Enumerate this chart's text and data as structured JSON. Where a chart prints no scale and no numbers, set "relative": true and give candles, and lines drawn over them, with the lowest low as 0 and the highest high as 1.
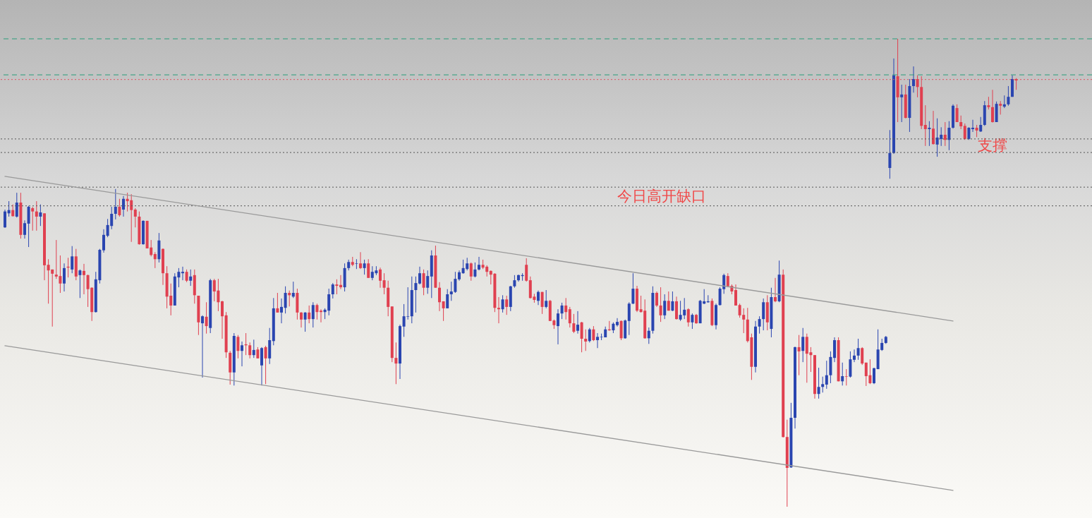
{
  "chart_data": {
    "type": "candlestick",
    "relative": true,
    "categories": [
      null,
      null,
      null,
      null,
      null,
      null,
      null,
      null,
      null,
      null,
      null,
      null,
      null,
      null,
      null,
      null,
      null,
      null,
      null,
      null,
      null,
      null,
      null,
      null,
      null,
      null,
      null,
      null,
      null,
      null,
      null,
      null,
      null,
      null,
      null,
      null,
      null,
      null,
      null,
      null,
      null,
      null,
      null,
      null,
      null,
      null,
      null,
      null,
      null,
      null,
      null,
      null,
      null,
      null,
      null,
      null,
      null,
      null,
      null,
      null,
      null,
      null,
      null,
      null,
      null,
      null,
      null,
      null,
      null,
      null,
      null,
      null,
      null,
      null,
      null,
      null,
      null,
      null,
      null,
      null,
      null,
      null,
      null,
      null,
      null,
      null,
      null,
      null,
      null,
      null,
      null,
      null,
      null,
      null,
      null,
      null,
      null,
      null,
      null,
      null,
      null,
      null,
      null,
      null,
      null,
      null,
      null,
      null,
      null,
      null,
      null,
      null,
      null,
      null,
      null,
      null,
      null,
      null,
      null,
      null,
      null,
      null,
      null,
      null,
      null,
      null,
      null,
      null,
      null,
      null,
      null,
      null,
      null,
      null,
      null,
      null,
      null,
      null,
      null,
      null,
      null,
      null,
      null,
      null,
      null,
      null,
      null,
      null,
      null,
      null,
      null,
      null,
      null,
      null,
      null,
      null,
      null,
      null,
      null,
      null,
      null,
      null,
      null,
      null,
      null,
      null,
      null,
      null,
      null,
      null,
      null,
      null,
      null,
      null,
      null,
      null,
      null,
      null,
      null,
      null,
      null,
      null,
      null,
      null,
      null,
      null,
      null,
      null,
      null,
      null,
      null,
      null,
      null,
      null,
      null,
      null,
      null,
      null,
      null,
      null,
      null,
      null,
      null,
      null,
      null,
      null,
      null,
      null,
      null,
      null,
      null,
      null,
      null,
      null,
      null,
      null,
      null,
      null,
      null,
      null,
      null,
      null,
      null,
      null,
      null,
      null,
      null,
      null,
      null,
      null,
      null,
      null,
      null,
      null,
      null,
      null,
      null,
      null,
      null,
      null,
      null,
      null,
      null,
      null,
      null,
      null,
      null,
      null,
      null,
      null,
      null,
      null,
      null,
      null,
      null,
      null,
      null
    ],
    "ohlc": [
      [
        0.597,
        0.635,
        0.596,
        0.631
      ],
      [
        0.627,
        0.653,
        0.62,
        0.634
      ],
      [
        0.634,
        0.646,
        0.62,
        0.621
      ],
      [
        0.62,
        0.671,
        0.618,
        0.65
      ],
      [
        0.65,
        0.671,
        0.573,
        0.581
      ],
      [
        0.581,
        0.612,
        0.573,
        0.606
      ],
      [
        0.605,
        0.643,
        0.555,
        0.641
      ],
      [
        0.638,
        0.641,
        0.59,
        0.631
      ],
      [
        0.631,
        0.653,
        0.59,
        0.62
      ],
      [
        0.62,
        0.646,
        0.6,
        0.629
      ],
      [
        0.627,
        0.627,
        0.484,
        0.516
      ],
      [
        0.517,
        0.529,
        0.434,
        0.505
      ],
      [
        0.507,
        0.507,
        0.385,
        0.498
      ],
      [
        0.496,
        0.57,
        0.487,
        0.492
      ],
      [
        0.493,
        0.537,
        0.457,
        0.477
      ],
      [
        0.477,
        0.52,
        0.46,
        0.51
      ],
      [
        0.513,
        0.532,
        0.49,
        0.511
      ],
      [
        0.507,
        0.557,
        0.499,
        0.535
      ],
      [
        0.535,
        0.551,
        0.484,
        0.492
      ],
      [
        0.495,
        0.507,
        0.446,
        0.505
      ],
      [
        0.504,
        0.519,
        0.454,
        0.495
      ],
      [
        0.495,
        0.496,
        0.427,
        0.465
      ],
      [
        0.468,
        0.469,
        0.397,
        0.416
      ],
      [
        0.416,
        0.502,
        0.415,
        0.486
      ],
      [
        0.484,
        0.551,
        0.477,
        0.549
      ],
      [
        0.548,
        0.593,
        0.543,
        0.581
      ],
      [
        0.579,
        0.615,
        0.576,
        0.602
      ],
      [
        0.6,
        0.641,
        0.593,
        0.626
      ],
      [
        0.626,
        0.679,
        0.614,
        0.641
      ],
      [
        0.641,
        0.658,
        0.62,
        0.623
      ],
      [
        0.635,
        0.664,
        0.62,
        0.658
      ],
      [
        0.658,
        0.671,
        0.631,
        0.653
      ],
      [
        0.655,
        0.668,
        0.566,
        0.634
      ],
      [
        0.635,
        0.638,
        0.597,
        0.62
      ],
      [
        0.62,
        0.631,
        0.56,
        0.561
      ],
      [
        0.561,
        0.612,
        0.56,
        0.611
      ],
      [
        0.611,
        0.611,
        0.552,
        0.552
      ],
      [
        0.554,
        0.57,
        0.535,
        0.538
      ],
      [
        0.54,
        0.544,
        0.51,
        0.529
      ],
      [
        0.529,
        0.585,
        0.522,
        0.569
      ],
      [
        0.551,
        0.552,
        0.474,
        0.499
      ],
      [
        0.499,
        0.514,
        0.424,
        0.449
      ],
      [
        0.451,
        0.477,
        0.409,
        0.43
      ],
      [
        0.43,
        0.499,
        0.43,
        0.492
      ],
      [
        0.49,
        0.51,
        0.469,
        0.502
      ],
      [
        0.499,
        0.513,
        0.484,
        0.502
      ],
      [
        0.502,
        0.507,
        0.48,
        0.483
      ],
      [
        0.483,
        0.507,
        0.472,
        0.492
      ],
      [
        0.495,
        0.507,
        0.434,
        0.452
      ],
      [
        0.451,
        0.451,
        0.367,
        0.394
      ],
      [
        0.392,
        0.409,
        0.276,
        0.407
      ],
      [
        0.406,
        0.437,
        0.37,
        0.386
      ],
      [
        0.382,
        0.487,
        0.371,
        0.484
      ],
      [
        0.484,
        0.487,
        0.439,
        0.46
      ],
      [
        0.462,
        0.487,
        0.418,
        0.437
      ],
      [
        0.439,
        0.44,
        0.359,
        0.407
      ],
      [
        0.409,
        0.416,
        0.318,
        0.33
      ],
      [
        0.329,
        0.333,
        0.261,
        0.287
      ],
      [
        0.287,
        0.371,
        0.259,
        0.365
      ],
      [
        0.363,
        0.367,
        0.317,
        0.333
      ],
      [
        0.333,
        0.353,
        0.3,
        0.345
      ],
      [
        0.347,
        0.371,
        0.324,
        0.345
      ],
      [
        0.345,
        0.351,
        0.317,
        0.324
      ],
      [
        0.324,
        0.357,
        0.318,
        0.335
      ],
      [
        0.336,
        0.341,
        0.317,
        0.317
      ],
      [
        0.302,
        0.341,
        0.259,
        0.339
      ],
      [
        0.341,
        0.344,
        0.262,
        0.317
      ],
      [
        0.317,
        0.382,
        0.305,
        0.356
      ],
      [
        0.354,
        0.446,
        0.345,
        0.424
      ],
      [
        0.424,
        0.457,
        0.415,
        0.415
      ],
      [
        0.415,
        0.445,
        0.392,
        0.427
      ],
      [
        0.425,
        0.471,
        0.413,
        0.457
      ],
      [
        0.457,
        0.462,
        0.428,
        0.452
      ],
      [
        0.449,
        0.481,
        0.446,
        0.457
      ],
      [
        0.457,
        0.466,
        0.4,
        0.415
      ],
      [
        0.415,
        0.416,
        0.383,
        0.4
      ],
      [
        0.4,
        0.416,
        0.374,
        0.415
      ],
      [
        0.415,
        0.43,
        0.392,
        0.401
      ],
      [
        0.401,
        0.437,
        0.383,
        0.431
      ],
      [
        0.431,
        0.434,
        0.4,
        0.416
      ],
      [
        0.419,
        0.422,
        0.394,
        0.416
      ],
      [
        0.416,
        0.424,
        0.401,
        0.421
      ],
      [
        0.419,
        0.466,
        0.409,
        0.454
      ],
      [
        0.454,
        0.478,
        0.445,
        0.475
      ],
      [
        0.475,
        0.486,
        0.454,
        0.472
      ],
      [
        0.474,
        0.495,
        0.465,
        0.469
      ],
      [
        0.469,
        0.52,
        0.46,
        0.51
      ],
      [
        0.51,
        0.528,
        0.505,
        0.523
      ],
      [
        0.523,
        0.534,
        0.514,
        0.517
      ],
      [
        0.519,
        0.529,
        0.508,
        0.52
      ],
      [
        0.52,
        0.544,
        0.508,
        0.51
      ],
      [
        0.51,
        0.528,
        0.496,
        0.52
      ],
      [
        0.52,
        0.529,
        0.489,
        0.489
      ],
      [
        0.489,
        0.514,
        0.484,
        0.502
      ],
      [
        0.499,
        0.514,
        0.495,
        0.505
      ],
      [
        0.507,
        0.511,
        0.468,
        0.483
      ],
      [
        0.484,
        0.499,
        0.454,
        0.468
      ],
      [
        0.468,
        0.483,
        0.407,
        0.427
      ],
      [
        0.428,
        0.428,
        0.309,
        0.318
      ],
      [
        0.318,
        0.351,
        0.262,
        0.306
      ],
      [
        0.306,
        0.389,
        0.273,
        0.386
      ],
      [
        0.385,
        0.433,
        0.363,
        0.407
      ],
      [
        0.406,
        0.469,
        0.4,
        0.407
      ],
      [
        0.407,
        0.492,
        0.392,
        0.463
      ],
      [
        0.463,
        0.492,
        0.415,
        0.478
      ],
      [
        0.477,
        0.513,
        0.475,
        0.499
      ],
      [
        0.499,
        0.507,
        0.452,
        0.468
      ],
      [
        0.468,
        0.505,
        0.455,
        0.493
      ],
      [
        0.492,
        0.548,
        0.446,
        0.537
      ],
      [
        0.537,
        0.558,
        0.468,
        0.468
      ],
      [
        0.468,
        0.48,
        0.418,
        0.437
      ],
      [
        0.439,
        0.439,
        0.397,
        0.424
      ],
      [
        0.424,
        0.465,
        0.424,
        0.454
      ],
      [
        0.454,
        0.481,
        0.44,
        0.46
      ],
      [
        0.459,
        0.502,
        0.457,
        0.487
      ],
      [
        0.486,
        0.505,
        0.483,
        0.501
      ],
      [
        0.499,
        0.528,
        0.498,
        0.51
      ],
      [
        0.508,
        0.532,
        0.505,
        0.52
      ],
      [
        0.52,
        0.522,
        0.483,
        0.492
      ],
      [
        0.492,
        0.522,
        0.49,
        0.507
      ],
      [
        0.507,
        0.534,
        0.505,
        0.517
      ],
      [
        0.517,
        0.528,
        0.508,
        0.511
      ],
      [
        0.513,
        0.516,
        0.492,
        0.502
      ],
      [
        0.504,
        0.505,
        0.475,
        0.496
      ],
      [
        0.498,
        0.499,
        0.416,
        0.425
      ],
      [
        0.425,
        0.448,
        0.392,
        0.422
      ],
      [
        0.422,
        0.452,
        0.415,
        0.443
      ],
      [
        0.443,
        0.451,
        0.41,
        0.427
      ],
      [
        0.427,
        0.472,
        0.418,
        0.471
      ],
      [
        0.471,
        0.495,
        0.468,
        0.484
      ],
      [
        0.484,
        0.496,
        0.481,
        0.495
      ],
      [
        0.493,
        0.499,
        0.483,
        0.495
      ],
      [
        0.517,
        0.531,
        0.481,
        0.483
      ],
      [
        0.484,
        0.492,
        0.445,
        0.446
      ],
      [
        0.449,
        0.455,
        0.436,
        0.442
      ],
      [
        0.44,
        0.462,
        0.431,
        0.459
      ],
      [
        0.459,
        0.459,
        0.412,
        0.427
      ],
      [
        0.427,
        0.463,
        0.424,
        0.44
      ],
      [
        0.44,
        0.442,
        0.397,
        0.397
      ],
      [
        0.398,
        0.4,
        0.38,
        0.388
      ],
      [
        0.386,
        0.422,
        0.347,
        0.413
      ],
      [
        0.413,
        0.436,
        0.401,
        0.43
      ],
      [
        0.43,
        0.446,
        0.4,
        0.416
      ],
      [
        0.422,
        0.427,
        0.383,
        0.392
      ],
      [
        0.392,
        0.412,
        0.371,
        0.374
      ],
      [
        0.376,
        0.418,
        0.37,
        0.389
      ],
      [
        0.394,
        0.395,
        0.33,
        0.359
      ],
      [
        0.359,
        0.379,
        0.333,
        0.353
      ],
      [
        0.354,
        0.382,
        0.351,
        0.379
      ],
      [
        0.379,
        0.386,
        0.354,
        0.356
      ],
      [
        0.356,
        0.371,
        0.339,
        0.363
      ],
      [
        0.362,
        0.37,
        0.356,
        0.363
      ],
      [
        0.362,
        0.385,
        0.362,
        0.379
      ],
      [
        0.379,
        0.397,
        0.376,
        0.377
      ],
      [
        0.377,
        0.394,
        0.371,
        0.391
      ],
      [
        0.388,
        0.403,
        0.385,
        0.395
      ],
      [
        0.397,
        0.398,
        0.356,
        0.36
      ],
      [
        0.36,
        0.4,
        0.359,
        0.398
      ],
      [
        0.397,
        0.437,
        0.367,
        0.434
      ],
      [
        0.434,
        0.499,
        0.433,
        0.466
      ],
      [
        0.466,
        0.472,
        0.416,
        0.419
      ],
      [
        0.422,
        0.451,
        0.415,
        0.416
      ],
      [
        0.419,
        0.443,
        0.359,
        0.36
      ],
      [
        0.36,
        0.383,
        0.348,
        0.376
      ],
      [
        0.376,
        0.471,
        0.37,
        0.457
      ],
      [
        0.457,
        0.46,
        0.427,
        0.43
      ],
      [
        0.43,
        0.469,
        0.395,
        0.409
      ],
      [
        0.409,
        0.454,
        0.401,
        0.44
      ],
      [
        0.44,
        0.46,
        0.419,
        0.419
      ],
      [
        0.419,
        0.46,
        0.418,
        0.439
      ],
      [
        0.439,
        0.449,
        0.4,
        0.401
      ],
      [
        0.4,
        0.44,
        0.397,
        0.41
      ],
      [
        0.409,
        0.446,
        0.401,
        0.421
      ],
      [
        0.422,
        0.424,
        0.385,
        0.394
      ],
      [
        0.394,
        0.413,
        0.38,
        0.41
      ],
      [
        0.41,
        0.412,
        0.391,
        0.392
      ],
      [
        0.392,
        0.442,
        0.392,
        0.44
      ],
      [
        0.434,
        0.465,
        0.433,
        0.439
      ],
      [
        0.437,
        0.452,
        0.436,
        0.439
      ],
      [
        0.44,
        0.445,
        0.386,
        0.388
      ],
      [
        0.388,
        0.434,
        0.379,
        0.431
      ],
      [
        0.431,
        0.469,
        0.43,
        0.466
      ],
      [
        0.465,
        0.498,
        0.455,
        0.495
      ],
      [
        0.493,
        0.499,
        0.469,
        0.471
      ],
      [
        0.472,
        0.475,
        0.454,
        0.46
      ],
      [
        0.463,
        0.475,
        0.43,
        0.43
      ],
      [
        0.431,
        0.434,
        0.404,
        0.409
      ],
      [
        0.41,
        0.424,
        0.371,
        0.4
      ],
      [
        0.4,
        0.425,
        0.351,
        0.354
      ],
      [
        0.362,
        0.37,
        0.271,
        0.299
      ],
      [
        0.299,
        0.397,
        0.287,
        0.385
      ],
      [
        0.385,
        0.407,
        0.37,
        0.401
      ],
      [
        0.401,
        0.445,
        0.377,
        0.437
      ],
      [
        0.437,
        0.452,
        0.377,
        0.394
      ],
      [
        0.38,
        0.468,
        0.362,
        0.448
      ],
      [
        0.448,
        0.489,
        0.437,
        0.439
      ],
      [
        0.439,
        0.526,
        0.437,
        0.496
      ],
      [
        0.496,
        0.507,
        0.148,
        0.149
      ],
      [
        0.149,
        0.186,
        0,
        0.083
      ],
      [
        0.084,
        0.222,
        0.083,
        0.19
      ],
      [
        0.19,
        0.342,
        0.167,
        0.341
      ],
      [
        0.341,
        0.367,
        0.281,
        0.332
      ],
      [
        0.333,
        0.382,
        0.309,
        0.363
      ],
      [
        0.363,
        0.37,
        0.265,
        0.327
      ],
      [
        0.33,
        0.341,
        0.288,
        0.324
      ],
      [
        0.324,
        0.324,
        0.231,
        0.241
      ],
      [
        0.241,
        0.297,
        0.231,
        0.256
      ],
      [
        0.256,
        0.278,
        0.244,
        0.262
      ],
      [
        0.261,
        0.312,
        0.252,
        0.281
      ],
      [
        0.281,
        0.332,
        0.264,
        0.32
      ],
      [
        0.318,
        0.362,
        0.309,
        0.356
      ],
      [
        0.356,
        0.362,
        0.268,
        0.268
      ],
      [
        0.268,
        0.308,
        0.259,
        0.279
      ],
      [
        0.279,
        0.294,
        0.259,
        0.278
      ],
      [
        0.278,
        0.332,
        0.276,
        0.315
      ],
      [
        0.314,
        0.336,
        0.309,
        0.323
      ],
      [
        0.323,
        0.359,
        0.314,
        0.339
      ],
      [
        0.339,
        0.341,
        0.303,
        0.306
      ],
      [
        0.308,
        0.308,
        0.258,
        0.279
      ],
      [
        0.281,
        0.315,
        0.262,
        0.264
      ],
      [
        0.264,
        0.297,
        0.262,
        0.296
      ],
      [
        0.294,
        0.379,
        0.294,
        0.336
      ],
      [
        0.335,
        0.359,
        0.333,
        0.35
      ],
      [
        0.35,
        0.365,
        0.348,
        0.363
      ],
      [
        0.724,
        0.805,
        0.701,
        0.756
      ],
      [
        0.756,
        0.958,
        0.754,
        0.922
      ],
      [
        0.92,
        1,
        0.822,
        0.875
      ],
      [
        0.875,
        0.902,
        0.822,
        0.881
      ],
      [
        0.881,
        0.902,
        0.83,
        0.831
      ],
      [
        0.831,
        0.914,
        0.801,
        0.899
      ],
      [
        0.899,
        0.941,
        0.885,
        0.914
      ],
      [
        0.914,
        0.922,
        0.875,
        0.897
      ],
      [
        0.897,
        0.92,
        0.807,
        0.814
      ],
      [
        0.816,
        0.858,
        0.771,
        0.807
      ],
      [
        0.807,
        0.824,
        0.771,
        0.81
      ],
      [
        0.808,
        0.846,
        0.774,
        0.775
      ],
      [
        0.774,
        0.83,
        0.748,
        0.789
      ],
      [
        0.786,
        0.811,
        0.771,
        0.795
      ],
      [
        0.795,
        0.822,
        0.771,
        0.784
      ],
      [
        0.784,
        0.824,
        0.762,
        0.81
      ],
      [
        0.81,
        0.86,
        0.808,
        0.857
      ],
      [
        0.852,
        0.86,
        0.822,
        0.822
      ],
      [
        0.822,
        0.836,
        0.807,
        0.813
      ],
      [
        0.814,
        0.819,
        0.784,
        0.786
      ],
      [
        0.786,
        0.811,
        0.784,
        0.81
      ],
      [
        0.807,
        0.827,
        0.801,
        0.81
      ],
      [
        0.81,
        0.816,
        0.79,
        0.804
      ],
      [
        0.802,
        0.833,
        0.801,
        0.816
      ],
      [
        0.816,
        0.867,
        0.814,
        0.858
      ],
      [
        0.858,
        0.876,
        0.849,
        0.854
      ],
      [
        0.854,
        0.891,
        0.821,
        0.822
      ],
      [
        0.822,
        0.866,
        0.822,
        0.861
      ],
      [
        0.861,
        0.867,
        0.838,
        0.857
      ],
      [
        0.855,
        0.879,
        0.852,
        0.86
      ],
      [
        0.86,
        0.899,
        0.857,
        0.876
      ],
      [
        0.876,
        0.922,
        0.876,
        0.914
      ],
      [
        0.914,
        0.916,
        0.891,
        0.911
      ]
    ],
    "colors": [
      "#2a45b0",
      "#2a45b0",
      "#e04050",
      "#2a45b0",
      "#e04050",
      "#2a45b0",
      "#2a45b0",
      "#e04050",
      "#e04050",
      "#2a45b0",
      "#e04050",
      "#e04050",
      "#e04050",
      "#e04050",
      "#e04050",
      "#2a45b0",
      "#e04050",
      "#2a45b0",
      "#e04050",
      "#2a45b0",
      "#e04050",
      "#e04050",
      "#e04050",
      "#2a45b0",
      "#2a45b0",
      "#2a45b0",
      "#2a45b0",
      "#2a45b0",
      "#2a45b0",
      "#e04050",
      "#2a45b0",
      "#e04050",
      "#e04050",
      "#e04050",
      "#e04050",
      "#2a45b0",
      "#e04050",
      "#e04050",
      "#e04050",
      "#2a45b0",
      "#e04050",
      "#e04050",
      "#e04050",
      "#2a45b0",
      "#2a45b0",
      "#2a45b0",
      "#e04050",
      "#2a45b0",
      "#e04050",
      "#e04050",
      "#2a45b0",
      "#e04050",
      "#2a45b0",
      "#e04050",
      "#e04050",
      "#e04050",
      "#e04050",
      "#e04050",
      "#2a45b0",
      "#e04050",
      "#2a45b0",
      "#e04050",
      "#e04050",
      "#2a45b0",
      "#e04050",
      "#2a45b0",
      "#e04050",
      "#2a45b0",
      "#2a45b0",
      "#e04050",
      "#2a45b0",
      "#2a45b0",
      "#e04050",
      "#2a45b0",
      "#e04050",
      "#e04050",
      "#2a45b0",
      "#e04050",
      "#2a45b0",
      "#e04050",
      "#e04050",
      "#2a45b0",
      "#2a45b0",
      "#2a45b0",
      "#e04050",
      "#e04050",
      "#2a45b0",
      "#2a45b0",
      "#e04050",
      "#2a45b0",
      "#e04050",
      "#2a45b0",
      "#e04050",
      "#2a45b0",
      "#2a45b0",
      "#e04050",
      "#e04050",
      "#e04050",
      "#e04050",
      "#e04050",
      "#2a45b0",
      "#2a45b0",
      "#2a45b0",
      "#2a45b0",
      "#2a45b0",
      "#2a45b0",
      "#e04050",
      "#2a45b0",
      "#2a45b0",
      "#e04050",
      "#e04050",
      "#e04050",
      "#2a45b0",
      "#2a45b0",
      "#2a45b0",
      "#2a45b0",
      "#2a45b0",
      "#2a45b0",
      "#e04050",
      "#2a45b0",
      "#2a45b0",
      "#e04050",
      "#e04050",
      "#e04050",
      "#e04050",
      "#e04050",
      "#2a45b0",
      "#e04050",
      "#2a45b0",
      "#2a45b0",
      "#2a45b0",
      "#2a45b0",
      "#e04050",
      "#e04050",
      "#e04050",
      "#2a45b0",
      "#e04050",
      "#2a45b0",
      "#e04050",
      "#e04050",
      "#2a45b0",
      "#2a45b0",
      "#e04050",
      "#e04050",
      "#e04050",
      "#2a45b0",
      "#e04050",
      "#e04050",
      "#2a45b0",
      "#e04050",
      "#2a45b0",
      "#2a45b0",
      "#2a45b0",
      "#e04050",
      "#2a45b0",
      "#2a45b0",
      "#e04050",
      "#2a45b0",
      "#2a45b0",
      "#2a45b0",
      "#e04050",
      "#e04050",
      "#e04050",
      "#2a45b0",
      "#2a45b0",
      "#e04050",
      "#e04050",
      "#2a45b0",
      "#e04050",
      "#2a45b0",
      "#e04050",
      "#2a45b0",
      "#2a45b0",
      "#e04050",
      "#2a45b0",
      "#e04050",
      "#2a45b0",
      "#2a45b0",
      "#2a45b0",
      "#e04050",
      "#2a45b0",
      "#2a45b0",
      "#2a45b0",
      "#e04050",
      "#e04050",
      "#e04050",
      "#e04050",
      "#e04050",
      "#e04050",
      "#e04050",
      "#2a45b0",
      "#2a45b0",
      "#2a45b0",
      "#e04050",
      "#2a45b0",
      "#e04050",
      "#2a45b0",
      "#e04050",
      "#e04050",
      "#2a45b0",
      "#2a45b0",
      "#e04050",
      "#2a45b0",
      "#e04050",
      "#e04050",
      "#e04050",
      "#2a45b0",
      "#2a45b0",
      "#2a45b0",
      "#2a45b0",
      "#2a45b0",
      "#e04050",
      "#2a45b0",
      "#e04050",
      "#2a45b0",
      "#2a45b0",
      "#2a45b0",
      "#e04050",
      "#e04050",
      "#e04050",
      "#2a45b0",
      "#2a45b0",
      "#2a45b0",
      "#2a45b0",
      "#2a45b0",
      "#2a45b0",
      "#e04050",
      "#2a45b0",
      "#e04050",
      "#2a45b0",
      "#2a45b0",
      "#e04050",
      "#e04050",
      "#e04050",
      "#2a45b0",
      "#e04050",
      "#2a45b0",
      "#2a45b0",
      "#e04050",
      "#2a45b0",
      "#2a45b0",
      "#e04050",
      "#e04050",
      "#e04050",
      "#2a45b0",
      "#2a45b0",
      "#e04050",
      "#2a45b0",
      "#2a45b0",
      "#e04050",
      "#e04050",
      "#2a45b0",
      "#e04050",
      "#2a45b0",
      "#2a45b0",
      "#2a45b0",
      "#e04050"
    ],
    "series": [
      {
        "type": "line",
        "color": "#9a9a9a",
        "values": [
          0.706,
          null,
          null,
          null,
          null,
          null,
          null,
          null,
          null,
          null,
          null,
          null,
          null,
          null,
          null,
          null,
          null,
          null,
          null,
          null,
          null,
          null,
          null,
          null,
          null,
          null,
          null,
          null,
          null,
          null,
          null,
          null,
          null,
          null,
          null,
          null,
          null,
          null,
          null,
          null,
          null,
          null,
          null,
          null,
          null,
          null,
          null,
          null,
          null,
          null,
          null,
          null,
          null,
          null,
          null,
          null,
          null,
          null,
          null,
          null,
          null,
          null,
          null,
          null,
          null,
          null,
          null,
          null,
          null,
          null,
          null,
          null,
          null,
          null,
          null,
          null,
          null,
          null,
          null,
          null,
          null,
          null,
          null,
          null,
          null,
          null,
          null,
          null,
          null,
          null,
          null,
          null,
          null,
          null,
          null,
          null,
          null,
          null,
          null,
          null,
          null,
          null,
          null,
          null,
          null,
          null,
          null,
          null,
          null,
          null,
          null,
          null,
          null,
          null,
          null,
          null,
          null,
          null,
          null,
          null,
          null,
          null,
          null,
          null,
          null,
          null,
          null,
          null,
          null,
          null,
          null,
          null,
          null,
          null,
          null,
          null,
          null,
          null,
          null,
          null,
          null,
          null,
          null,
          null,
          null,
          null,
          null,
          null,
          null,
          null,
          null,
          null,
          null,
          null,
          null,
          null,
          null,
          null,
          null,
          null,
          null,
          null,
          null,
          null,
          null,
          null,
          null,
          null,
          null,
          null,
          null,
          null,
          null,
          null,
          null,
          null,
          null,
          null,
          null,
          null,
          null,
          null,
          null,
          null,
          null,
          null,
          null,
          null,
          null,
          null,
          null,
          null,
          null,
          null,
          null,
          null,
          null,
          null,
          null,
          null,
          null,
          null,
          null,
          null,
          null,
          null,
          null,
          null,
          null,
          null,
          null,
          null,
          null,
          null,
          null,
          null,
          null,
          null,
          null,
          null,
          null,
          null,
          null,
          null,
          null,
          null,
          null,
          null,
          null,
          null,
          null,
          null,
          null,
          null,
          null,
          null,
          null,
          null,
          null,
          null,
          0.397,
          null,
          null,
          null,
          null,
          null,
          null,
          null,
          null,
          null,
          null,
          null,
          null,
          null,
          null,
          null,
          null
        ]
      },
      {
        "type": "line",
        "color": "#9a9a9a",
        "values": [
          0.344,
          null,
          null,
          null,
          null,
          null,
          null,
          null,
          null,
          null,
          null,
          null,
          null,
          null,
          null,
          null,
          null,
          null,
          null,
          null,
          null,
          null,
          null,
          null,
          null,
          null,
          null,
          null,
          null,
          null,
          null,
          null,
          null,
          null,
          null,
          null,
          null,
          null,
          null,
          null,
          null,
          null,
          null,
          null,
          null,
          null,
          null,
          null,
          null,
          null,
          null,
          null,
          null,
          null,
          null,
          null,
          null,
          null,
          null,
          null,
          null,
          null,
          null,
          null,
          null,
          null,
          null,
          null,
          null,
          null,
          null,
          null,
          null,
          null,
          null,
          null,
          null,
          null,
          null,
          null,
          null,
          null,
          null,
          null,
          null,
          null,
          null,
          null,
          null,
          null,
          null,
          null,
          null,
          null,
          null,
          null,
          null,
          null,
          null,
          null,
          null,
          null,
          null,
          null,
          null,
          null,
          null,
          null,
          null,
          null,
          null,
          null,
          null,
          null,
          null,
          null,
          null,
          null,
          null,
          null,
          null,
          null,
          null,
          null,
          null,
          null,
          null,
          null,
          null,
          null,
          null,
          null,
          null,
          null,
          null,
          null,
          null,
          null,
          null,
          null,
          null,
          null,
          null,
          null,
          null,
          null,
          null,
          null,
          null,
          null,
          null,
          null,
          null,
          null,
          null,
          null,
          null,
          null,
          null,
          null,
          null,
          null,
          null,
          null,
          null,
          null,
          null,
          null,
          null,
          null,
          null,
          null,
          null,
          null,
          null,
          null,
          null,
          null,
          null,
          null,
          null,
          null,
          null,
          null,
          null,
          null,
          null,
          null,
          null,
          null,
          null,
          null,
          null,
          null,
          null,
          null,
          null,
          null,
          null,
          null,
          null,
          null,
          null,
          null,
          null,
          null,
          null,
          null,
          null,
          null,
          null,
          null,
          null,
          null,
          null,
          null,
          null,
          null,
          null,
          null,
          null,
          null,
          null,
          null,
          null,
          null,
          null,
          null,
          null,
          null,
          null,
          null,
          null,
          null,
          null,
          null,
          null,
          null,
          null,
          null,
          0.035,
          null,
          null,
          null,
          null,
          null,
          null,
          null,
          null,
          null,
          null,
          null,
          null,
          null,
          null,
          null,
          null
        ]
      }
    ],
    "line_style": "solid",
    "ref_lines": [
      {
        "axis": "y",
        "value": 1,
        "color": "#2a9d7a",
        "line_style": "dashed"
      },
      {
        "axis": "y",
        "value": 0.923,
        "color": "#2a9d7a",
        "line_style": "dashed"
      },
      {
        "axis": "y",
        "value": 0.913,
        "color": "#e05060",
        "line_style": "dotted"
      },
      {
        "axis": "y",
        "value": 0.683,
        "color": "#555555",
        "line_style": "dotted"
      },
      {
        "axis": "y",
        "value": 0.643,
        "color": "#555555",
        "line_style": "dotted"
      },
      {
        "axis": "y",
        "value": 0.786,
        "color": "#555555",
        "line_style": "dotted"
      },
      {
        "axis": "y",
        "value": 0.757,
        "color": "#555555",
        "line_style": "dotted"
      }
    ],
    "annotations": [
      "今日高开缺口",
      "支撑"
    ]
  }
}
